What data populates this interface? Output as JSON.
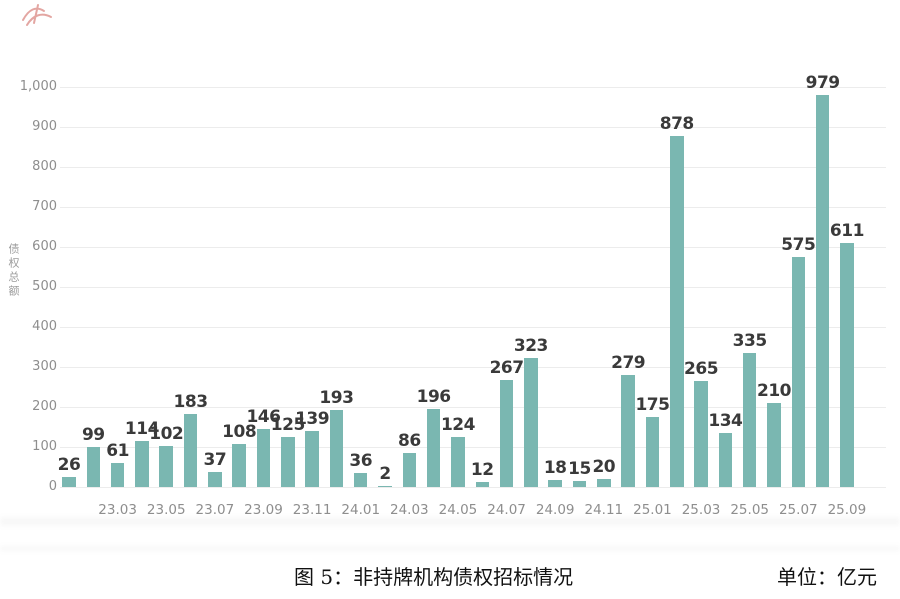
{
  "chart_data": {
    "type": "bar",
    "title": "图 5：非持牌机构债权招标情况",
    "unit": "单位：亿元",
    "ylabel": "债权总额",
    "categories": [
      "23.01",
      "23.02",
      "23.03",
      "23.04",
      "23.05",
      "23.06",
      "23.07",
      "23.08",
      "23.09",
      "23.10",
      "23.11",
      "23.12",
      "24.01",
      "24.02",
      "24.03",
      "24.04",
      "24.05",
      "24.06",
      "24.07",
      "24.08",
      "24.09",
      "24.10",
      "24.11",
      "24.12",
      "25.01",
      "25.02",
      "25.03",
      "25.04",
      "25.05",
      "25.06",
      "25.07",
      "25.08",
      "25.09"
    ],
    "values": [
      26,
      99,
      61,
      114,
      102,
      183,
      37,
      108,
      146,
      125,
      139,
      193,
      36,
      2,
      86,
      196,
      124,
      12,
      267,
      323,
      18,
      15,
      20,
      279,
      175,
      878,
      265,
      134,
      335,
      210,
      575,
      979,
      611
    ],
    "x_tick_labels": [
      "23.03",
      "23.05",
      "23.07",
      "23.09",
      "23.11",
      "24.01",
      "24.03",
      "24.05",
      "24.07",
      "24.09",
      "24.11",
      "25.01",
      "25.03",
      "25.05",
      "25.07",
      "25.09"
    ],
    "ylim": [
      0,
      1000
    ],
    "y_ticks": [
      0,
      100,
      200,
      300,
      400,
      500,
      600,
      700,
      800,
      900,
      1000
    ],
    "y_tick_labels": [
      "0",
      "100",
      "200",
      "300",
      "400",
      "500",
      "600",
      "700",
      "800",
      "900",
      "1,000"
    ],
    "bar_color": "#7ab7b1",
    "grid": "horizontal",
    "legend": "none",
    "value_labels_shown": true
  },
  "annotation": {
    "red_mark_color": "#c23b32"
  }
}
